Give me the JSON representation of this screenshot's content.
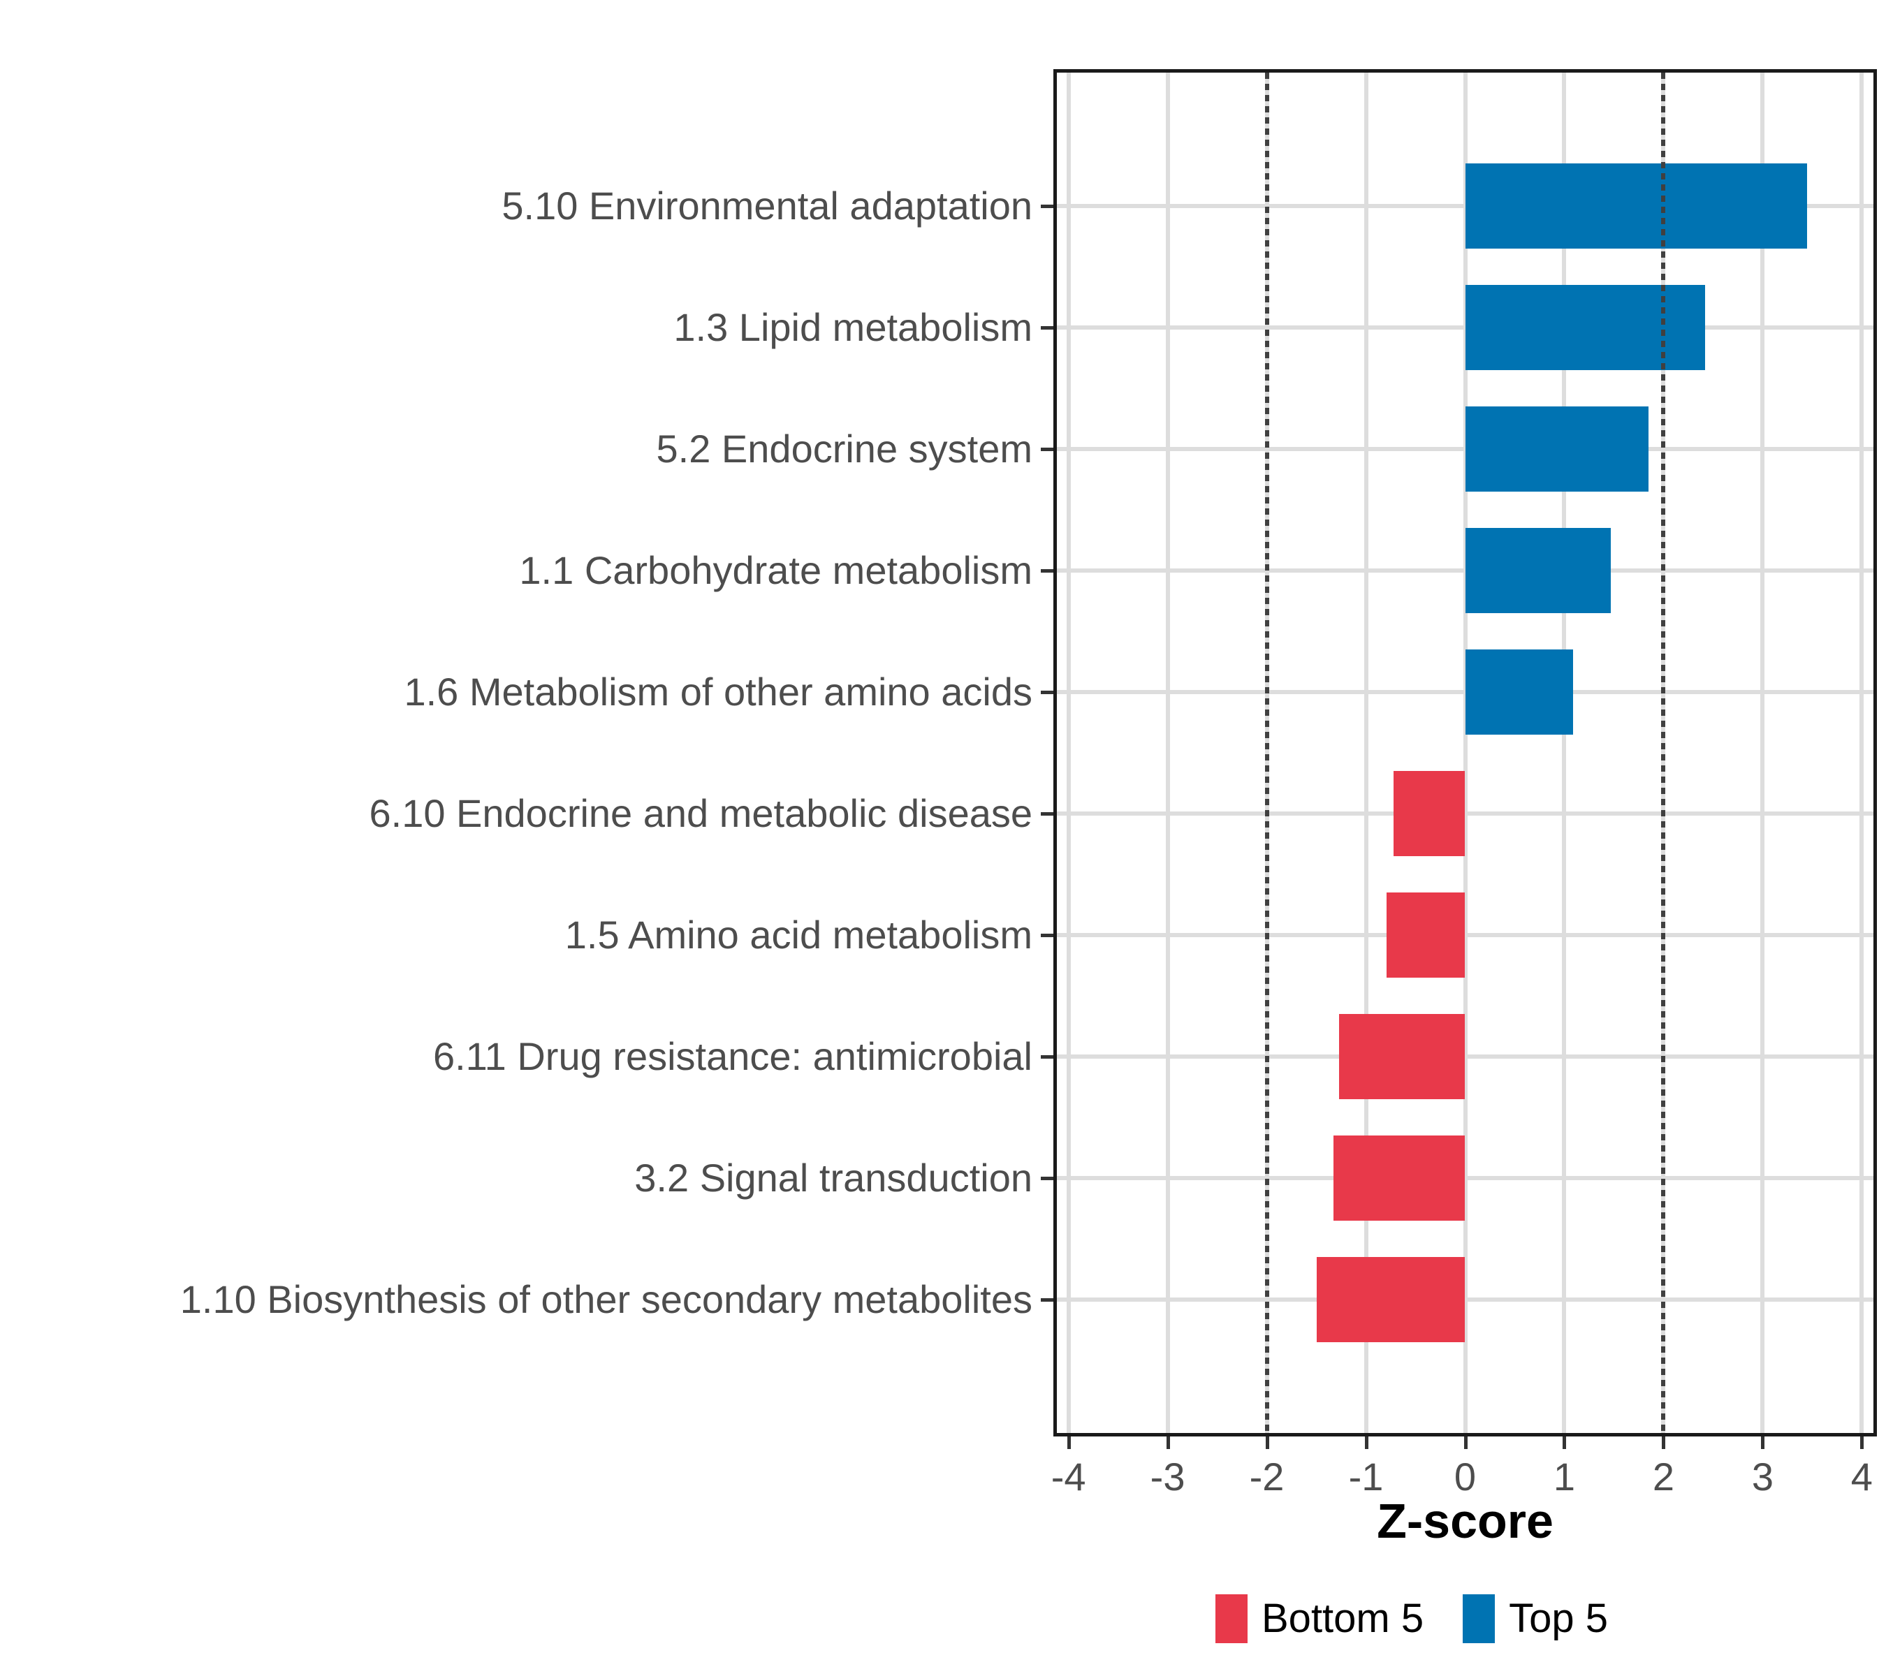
{
  "chart_data": {
    "type": "bar",
    "orientation": "horizontal",
    "title": "",
    "xlabel": "Z-score",
    "ylabel": "",
    "categories": [
      "5.10 Environmental adaptation",
      "1.3 Lipid metabolism",
      "5.2 Endocrine system",
      "1.1 Carbohydrate metabolism",
      "1.6 Metabolism of other amino acids",
      "6.10 Endocrine and metabolic disease",
      "1.5 Amino acid metabolism",
      "6.11 Drug resistance: antimicrobial",
      "3.2 Signal transduction",
      "1.10 Biosynthesis of other secondary metabolites"
    ],
    "series": [
      {
        "name": "Z-score",
        "values": [
          3.45,
          2.42,
          1.85,
          1.47,
          1.09,
          -0.72,
          -0.79,
          -1.27,
          -1.33,
          -1.5
        ],
        "groups": [
          "Top 5",
          "Top 5",
          "Top 5",
          "Top 5",
          "Top 5",
          "Bottom 5",
          "Bottom 5",
          "Bottom 5",
          "Bottom 5",
          "Bottom 5"
        ]
      }
    ],
    "x_ticks": [
      -4,
      -3,
      -2,
      -1,
      0,
      1,
      2,
      3,
      4
    ],
    "x_tick_labels": [
      "-4",
      "-3",
      "-2",
      "-1",
      "0",
      "1",
      "2",
      "3",
      "4"
    ],
    "xlim": [
      -4.117,
      4.117
    ],
    "reference_lines": [
      -2,
      2
    ],
    "grid": true,
    "legend_position": "bottom",
    "legend": [
      {
        "label": "Bottom 5",
        "color": "#E8394A"
      },
      {
        "label": "Top 5",
        "color": "#0073B2"
      }
    ],
    "colors": {
      "top5_blue": "#0073B2",
      "bottom5_red": "#E8394A",
      "gridline": "#dddddd",
      "panel_border": "#1a1a1a",
      "reference_line": "#404040",
      "axis_text": "#4d4d4d",
      "tick_mark": "#333333",
      "axis_title": "#000000"
    }
  }
}
